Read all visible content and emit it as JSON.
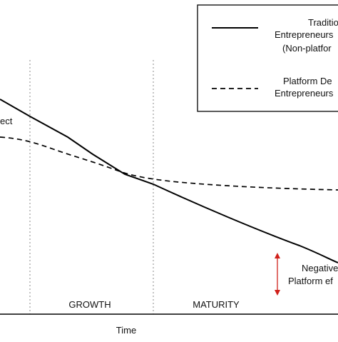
{
  "legend": {
    "items": [
      {
        "lines": [
          "Traditio",
          "Entrepreneurs",
          "(Non-platfor"
        ],
        "style": "solid"
      },
      {
        "lines": [
          "Platform De",
          "Entrepreneurs"
        ],
        "style": "dashed"
      }
    ]
  },
  "left_fragment": "ect",
  "phases": [
    "GROWTH",
    "MATURITY"
  ],
  "x_axis_label": "Time",
  "annotation": {
    "lines": [
      "Negative",
      "Platform ef"
    ],
    "arrow_color": "#d0201a"
  },
  "colors": {
    "line": "#000000",
    "grid": "#888888"
  }
}
